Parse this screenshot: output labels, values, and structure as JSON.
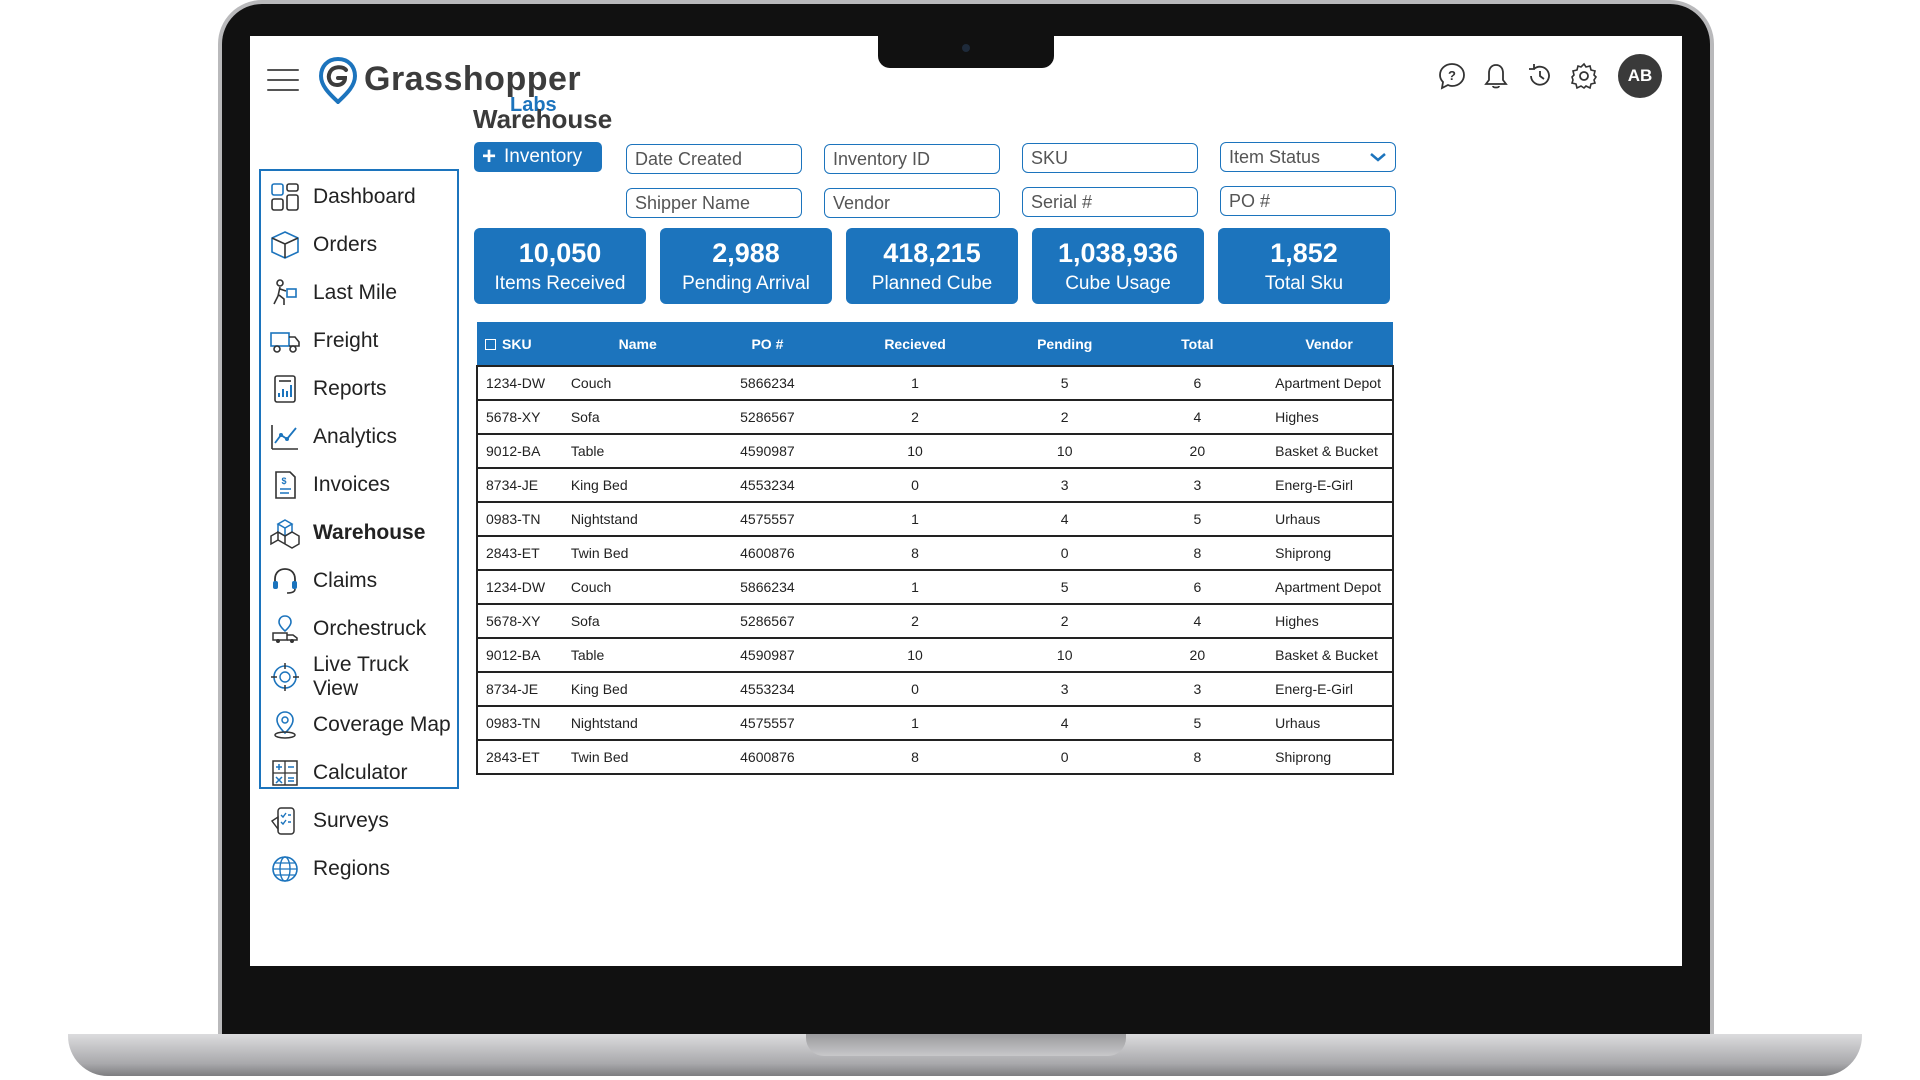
{
  "header": {
    "brand": "Grasshopper",
    "brand_sub": "Labs",
    "avatar_initials": "AB"
  },
  "page": {
    "title": "Warehouse"
  },
  "toolbar": {
    "add_label": "Inventory"
  },
  "filters": {
    "date_created": "Date Created",
    "inventory_id": "Inventory ID",
    "sku": "SKU",
    "item_status": "Item Status",
    "shipper_name": "Shipper Name",
    "vendor": "Vendor",
    "serial": "Serial #",
    "po": "PO #"
  },
  "sidebar": {
    "items": [
      {
        "label": "Dashboard",
        "icon": "dashboard-icon"
      },
      {
        "label": "Orders",
        "icon": "box-icon"
      },
      {
        "label": "Last Mile",
        "icon": "delivery-person-icon"
      },
      {
        "label": "Freight",
        "icon": "truck-icon"
      },
      {
        "label": "Reports",
        "icon": "report-icon"
      },
      {
        "label": "Analytics",
        "icon": "analytics-icon"
      },
      {
        "label": "Invoices",
        "icon": "invoice-icon"
      },
      {
        "label": "Warehouse",
        "icon": "warehouse-boxes-icon"
      },
      {
        "label": "Claims",
        "icon": "headset-icon"
      },
      {
        "label": "Orchestruck",
        "icon": "route-truck-icon"
      },
      {
        "label": "Live Truck View",
        "icon": "target-icon"
      },
      {
        "label": "Coverage Map",
        "icon": "map-pin-icon"
      },
      {
        "label": "Calculator",
        "icon": "calculator-icon"
      },
      {
        "label": "Surveys",
        "icon": "survey-icon"
      },
      {
        "label": "Regions",
        "icon": "globe-icon"
      }
    ]
  },
  "stats": [
    {
      "value": "10,050",
      "label": "Items Received"
    },
    {
      "value": "2,988",
      "label": "Pending Arrival"
    },
    {
      "value": "418,215",
      "label": "Planned Cube"
    },
    {
      "value": "1,038,936",
      "label": "Cube Usage"
    },
    {
      "value": "1,852",
      "label": "Total Sku"
    }
  ],
  "table": {
    "headers": [
      "SKU",
      "Name",
      "PO #",
      "Recieved",
      "Pending",
      "Total",
      "Vendor"
    ],
    "rows": [
      [
        "1234-DW",
        "Couch",
        "5866234",
        "1",
        "5",
        "6",
        "Apartment Depot"
      ],
      [
        "5678-XY",
        "Sofa",
        "5286567",
        "2",
        "2",
        "4",
        "Highes"
      ],
      [
        "9012-BA",
        "Table",
        "4590987",
        "10",
        "10",
        "20",
        "Basket & Bucket"
      ],
      [
        "8734-JE",
        "King Bed",
        "4553234",
        "0",
        "3",
        "3",
        "Energ-E-Girl"
      ],
      [
        "0983-TN",
        "Nightstand",
        "4575557",
        "1",
        "4",
        "5",
        "Urhaus"
      ],
      [
        "2843-ET",
        "Twin Bed",
        "4600876",
        "8",
        "0",
        "8",
        "Shiprong"
      ],
      [
        "1234-DW",
        "Couch",
        "5866234",
        "1",
        "5",
        "6",
        "Apartment Depot"
      ],
      [
        "5678-XY",
        "Sofa",
        "5286567",
        "2",
        "2",
        "4",
        "Highes"
      ],
      [
        "9012-BA",
        "Table",
        "4590987",
        "10",
        "10",
        "20",
        "Basket & Bucket"
      ],
      [
        "8734-JE",
        "King Bed",
        "4553234",
        "0",
        "3",
        "3",
        "Energ-E-Girl"
      ],
      [
        "0983-TN",
        "Nightstand",
        "4575557",
        "1",
        "4",
        "5",
        "Urhaus"
      ],
      [
        "2843-ET",
        "Twin Bed",
        "4600876",
        "8",
        "0",
        "8",
        "Shiprong"
      ]
    ]
  },
  "colors": {
    "accent": "#1c74bd",
    "text": "#222222",
    "avatar_bg": "#3a3a3a"
  }
}
